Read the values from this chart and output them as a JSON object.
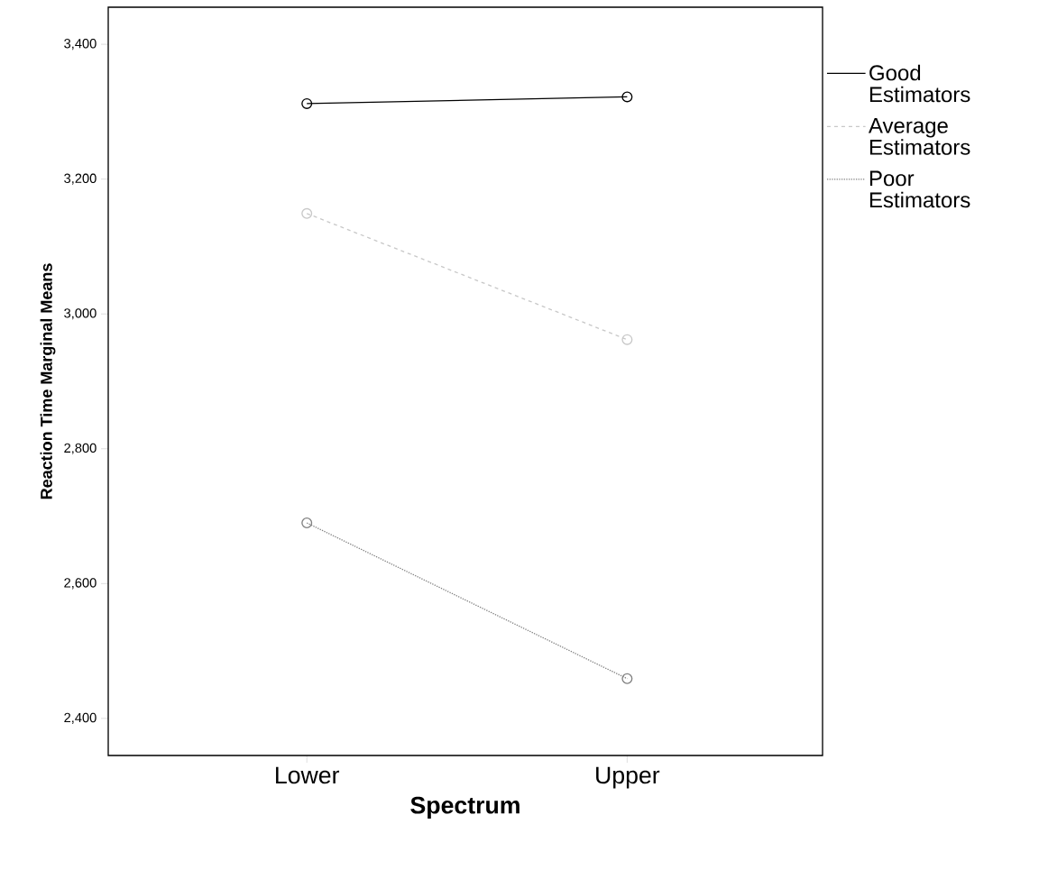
{
  "chart_data": {
    "type": "line",
    "xlabel": "Spectrum",
    "ylabel": "Reaction Time Marginal Means",
    "categories": [
      "Lower",
      "Upper"
    ],
    "series": [
      {
        "name": "Good Estimators",
        "color": "#000000",
        "values": [
          3312,
          3322
        ],
        "line_style": "solid"
      },
      {
        "name": "Average Estimators",
        "color": "#c8c8c8",
        "values": [
          3149,
          2962
        ],
        "line_style": "dashed"
      },
      {
        "name": "Poor Estimators",
        "color": "#808080",
        "values": [
          2690,
          2459
        ],
        "line_style": "dotted"
      }
    ],
    "ylim": [
      2345,
      3455
    ],
    "yticks": [
      {
        "value": 2400,
        "label": "2,400"
      },
      {
        "value": 2600,
        "label": "2,600"
      },
      {
        "value": 2800,
        "label": "2,800"
      },
      {
        "value": 3000,
        "label": "3,000"
      },
      {
        "value": 3200,
        "label": "3,200"
      },
      {
        "value": 3400,
        "label": "3,400"
      }
    ],
    "marker": "circle",
    "legend": "right",
    "grid": false
  }
}
